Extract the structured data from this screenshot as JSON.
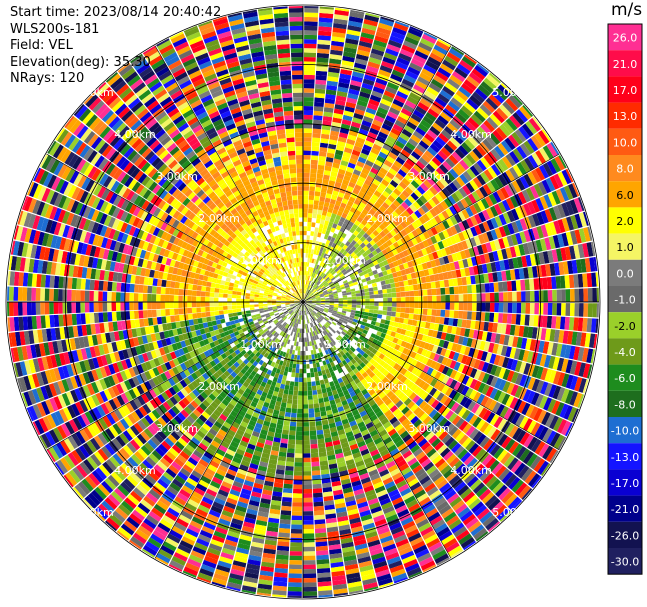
{
  "header": {
    "start_time": "Start time: 2023/08/14 20:40:42",
    "instrument": "WLS200s-181",
    "field": "Field: VEL",
    "elevation": "Elevation(deg): 35.30",
    "nrays": "NRays: 120"
  },
  "colorbar": {
    "unit": "m/s",
    "ticks": [
      "26.0",
      "21.0",
      "17.0",
      "13.0",
      "10.0",
      "8.0",
      "6.0",
      "2.0",
      "1.0",
      "0.0",
      "-1.0",
      "-2.0",
      "-4.0",
      "-6.0",
      "-8.0",
      "-10.0",
      "-13.0",
      "-17.0",
      "-21.0",
      "-26.0",
      "-30.0"
    ],
    "colors": [
      "#ff2f93",
      "#ff0c4a",
      "#ff001a",
      "#ff2b00",
      "#ff5a12",
      "#ff8a1e",
      "#ffa500",
      "#ffff00",
      "#f5f564",
      "#7b7b7b",
      "#6a6a6a",
      "#9ad02a",
      "#6e9a1a",
      "#1e8c1e",
      "#1e6e1e",
      "#1e6ed2",
      "#1414ff",
      "#0a00d2",
      "#00008c",
      "#121250",
      "#202060"
    ]
  },
  "range_rings": {
    "labels": [
      "1.00km",
      "2.00km",
      "3.00km",
      "4.00km",
      "5.00km"
    ]
  }
}
